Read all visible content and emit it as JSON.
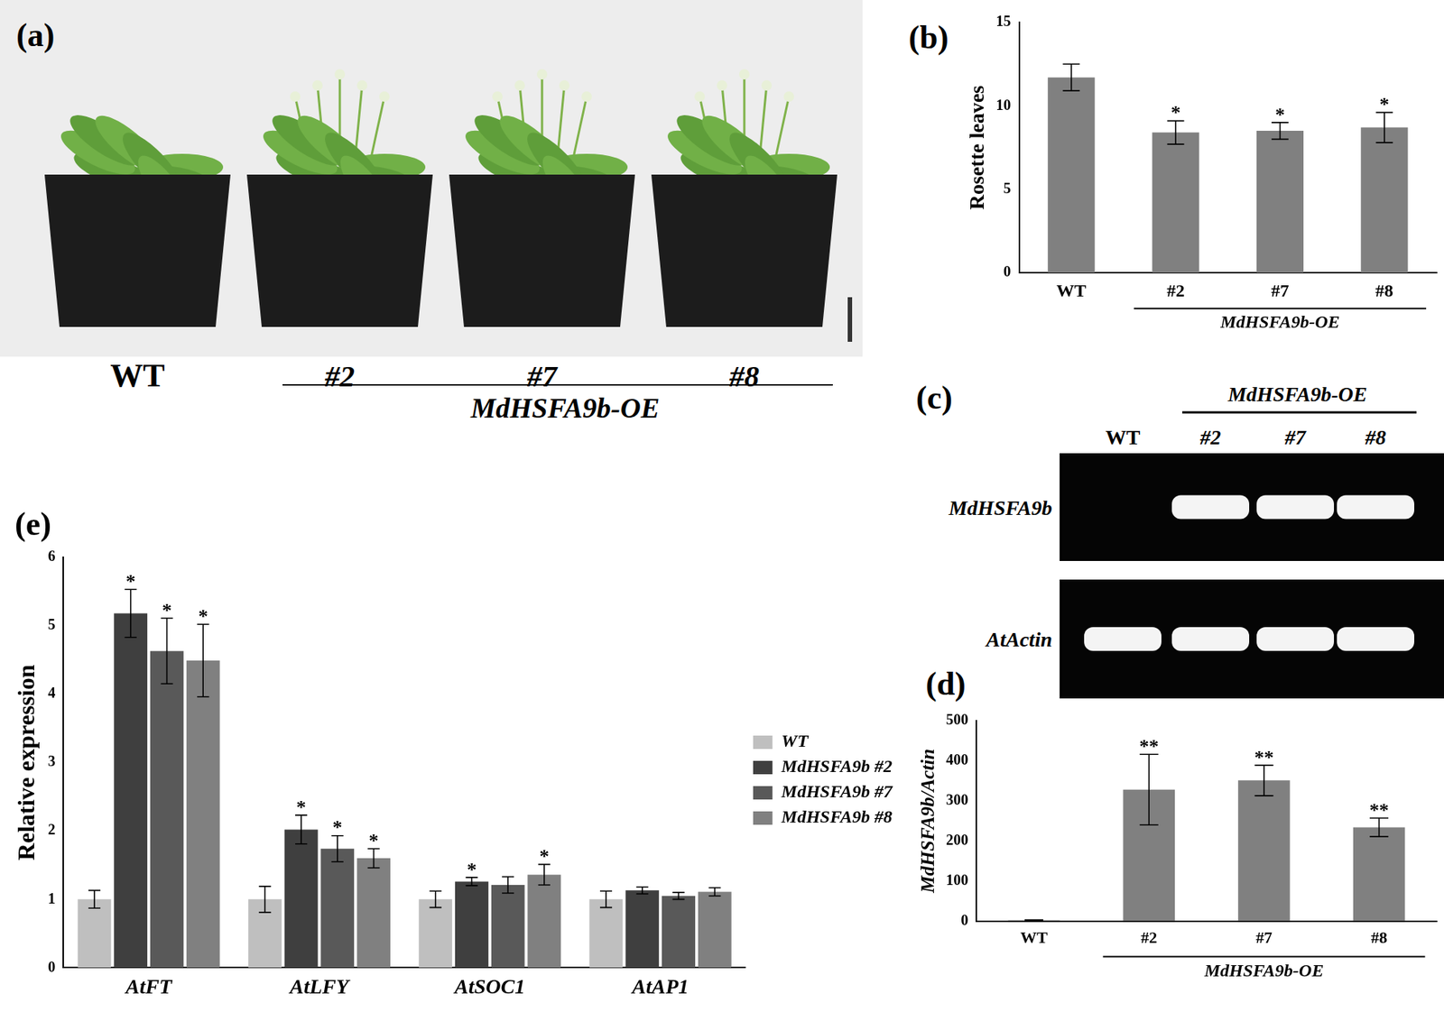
{
  "photo_panel": {
    "panel_label": "(a)",
    "labels": [
      "WT",
      "#2",
      "#7",
      "#8"
    ],
    "group_label": "MdHSFA9b-OE"
  },
  "gel_panel": {
    "panel_label": "(c)",
    "lanes": [
      "WT",
      "#2",
      "#7",
      "#8"
    ],
    "group_label": "MdHSFA9b-OE",
    "rows": [
      {
        "name": "MdHSFA9b",
        "bands": [
          false,
          true,
          true,
          true
        ]
      },
      {
        "name": "AtActin",
        "bands": [
          true,
          true,
          true,
          true
        ]
      }
    ]
  },
  "chart_data": [
    {
      "panel_label": "(b)",
      "type": "bar",
      "y_label": "Rosette leaves",
      "categories": [
        "WT",
        "#2",
        "#7",
        "#8"
      ],
      "values": [
        11.7,
        8.4,
        8.5,
        8.7
      ],
      "errors": [
        0.8,
        0.7,
        0.5,
        0.9
      ],
      "significance": [
        null,
        "*",
        "*",
        "*"
      ],
      "color": "#808080",
      "group": {
        "label": "MdHSFA9b-OE",
        "categories": [
          "#2",
          "#7",
          "#8"
        ]
      },
      "ylim": [
        0,
        15
      ],
      "yticks": [
        0,
        5,
        10,
        15
      ],
      "grid": false
    },
    {
      "panel_label": "(d)",
      "type": "bar",
      "y_label": "MdHSFA9b/Actin",
      "categories": [
        "WT",
        "#2",
        "#7",
        "#8"
      ],
      "values": [
        2,
        328,
        351,
        234
      ],
      "errors": [
        1,
        88,
        38,
        23
      ],
      "significance": [
        null,
        "**",
        "**",
        "**"
      ],
      "color": "#808080",
      "group": {
        "label": "MdHSFA9b-OE",
        "categories": [
          "#2",
          "#7",
          "#8"
        ]
      },
      "ylim": [
        0,
        500
      ],
      "yticks": [
        0,
        100,
        200,
        300,
        400,
        500
      ],
      "grid": false
    },
    {
      "panel_label": "(e)",
      "type": "bar",
      "y_label": "Relative expression",
      "categories": [
        "AtFT",
        "AtLFY",
        "AtSOC1",
        "AtAP1"
      ],
      "series": [
        {
          "name": "WT",
          "color": "#bfbfbf",
          "values": [
            1,
            1,
            1,
            1
          ],
          "errors": [
            0.13,
            0.19,
            0.12,
            0.12
          ],
          "significance": [
            null,
            null,
            null,
            null
          ]
        },
        {
          "name": "MdHSFA9b #2",
          "color": "#3f3f3f",
          "values": [
            5.18,
            2.02,
            1.26,
            1.13
          ],
          "errors": [
            0.35,
            0.21,
            0.06,
            0.05
          ],
          "significance": [
            "*",
            "*",
            "*",
            null
          ]
        },
        {
          "name": "MdHSFA9b #7",
          "color": "#595959",
          "values": [
            4.63,
            1.74,
            1.21,
            1.05
          ],
          "errors": [
            0.48,
            0.19,
            0.12,
            0.05
          ],
          "significance": [
            "*",
            "*",
            null,
            null
          ]
        },
        {
          "name": "MdHSFA9b #8",
          "color": "#808080",
          "values": [
            4.49,
            1.6,
            1.36,
            1.11
          ],
          "errors": [
            0.53,
            0.14,
            0.15,
            0.06
          ],
          "significance": [
            "*",
            "*",
            "*",
            null
          ]
        }
      ],
      "legend": "right",
      "ylim": [
        0,
        6
      ],
      "yticks": [
        0,
        1,
        2,
        3,
        4,
        5,
        6
      ],
      "grid": false
    }
  ]
}
